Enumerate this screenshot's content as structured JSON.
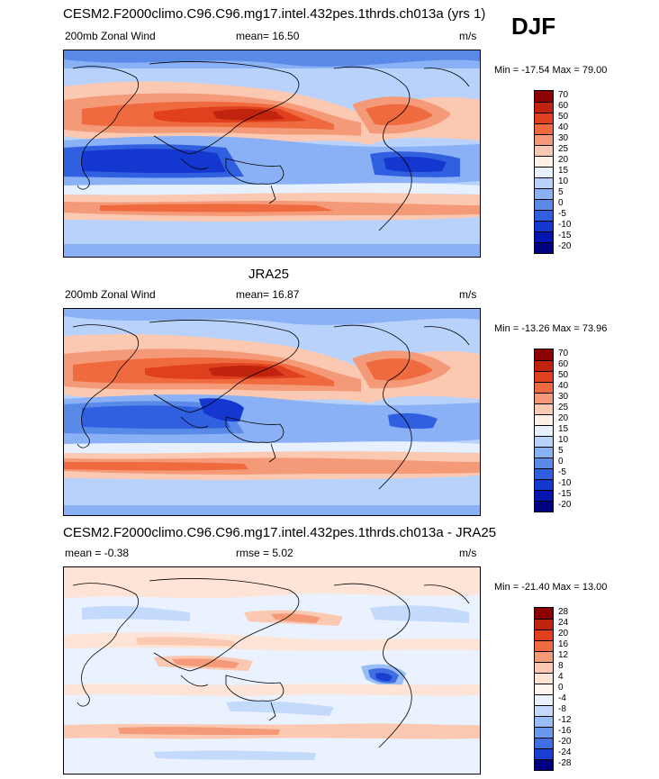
{
  "season": "DJF",
  "panels": [
    {
      "title": "CESM2.F2000climo.C96.C96.mg17.intel.432pes.1thrds.ch013a (yrs 1)",
      "left_label": "200mb Zonal Wind",
      "center_label": "mean=  16.50",
      "units": "m/s",
      "minmax": "Min = -17.54 Max =  79.00",
      "colorbar": {
        "labels": [
          "70",
          "60",
          "50",
          "40",
          "30",
          "25",
          "20",
          "15",
          "10",
          "5",
          "0",
          "-5",
          "-10",
          "-15",
          "-20"
        ],
        "colors": [
          "#8b0000",
          "#c0230e",
          "#e0401e",
          "#f06a40",
          "#f59a78",
          "#fbc9b2",
          "#fff0e6",
          "#e6f0ff",
          "#b8d2fb",
          "#8ab0f5",
          "#5a8ae8",
          "#3060e0",
          "#1437d0",
          "#0515b0",
          "#000080"
        ]
      }
    },
    {
      "title": "JRA25",
      "left_label": "200mb Zonal Wind",
      "center_label": "mean=  16.87",
      "units": "m/s",
      "minmax": "Min = -13.26 Max =  73.96",
      "colorbar": {
        "labels": [
          "70",
          "60",
          "50",
          "40",
          "30",
          "25",
          "20",
          "15",
          "10",
          "5",
          "0",
          "-5",
          "-10",
          "-15",
          "-20"
        ],
        "colors": [
          "#8b0000",
          "#c0230e",
          "#e0401e",
          "#f06a40",
          "#f59a78",
          "#fbc9b2",
          "#fff0e6",
          "#e6f0ff",
          "#b8d2fb",
          "#8ab0f5",
          "#5a8ae8",
          "#3060e0",
          "#1437d0",
          "#0515b0",
          "#000080"
        ]
      }
    },
    {
      "title": "CESM2.F2000climo.C96.C96.mg17.intel.432pes.1thrds.ch013a - JRA25",
      "left_label": "mean =  -0.38",
      "center_label": "rmse =   5.02",
      "units": "m/s",
      "minmax": "Min = -21.40 Max =  13.00",
      "colorbar": {
        "labels": [
          "28",
          "24",
          "20",
          "16",
          "12",
          "8",
          "4",
          "0",
          "-4",
          "-8",
          "-12",
          "-16",
          "-20",
          "-24",
          "-28"
        ],
        "colors": [
          "#8b0000",
          "#c0230e",
          "#e0401e",
          "#f06a40",
          "#f59a78",
          "#fbc9b2",
          "#fde4d6",
          "#fff4ee",
          "#eaf2ff",
          "#c4dafc",
          "#98bdf6",
          "#6a98ec",
          "#3e6ee2",
          "#1a3ed2",
          "#000080"
        ]
      }
    }
  ]
}
